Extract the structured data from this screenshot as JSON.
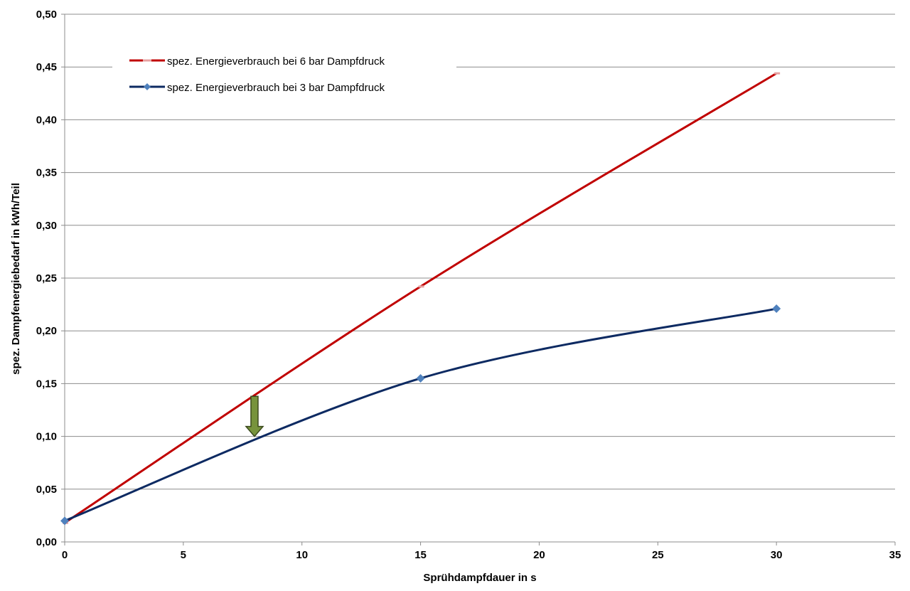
{
  "chart_data": {
    "type": "line",
    "title": "",
    "xlabel": "Sprühdampfdauer in s",
    "ylabel": "spez. Dampfenergiebedarf in kWh/Teil",
    "xlim": [
      0,
      35
    ],
    "ylim": [
      0,
      0.5
    ],
    "x_ticks": [
      "0",
      "5",
      "10",
      "15",
      "20",
      "25",
      "30",
      "35"
    ],
    "y_ticks": [
      "0,00",
      "0,05",
      "0,10",
      "0,15",
      "0,20",
      "0,25",
      "0,30",
      "0,35",
      "0,40",
      "0,45",
      "0,50"
    ],
    "grid": "horizontal",
    "legend_position": "top-left",
    "series": [
      {
        "name": "spez. Energieverbrauch bei 6 bar Dampfdruck",
        "color": "#c00000",
        "marker_color": "#e6a0a0",
        "marker": "dash",
        "x": [
          0,
          15,
          30
        ],
        "y": [
          0.018,
          0.242,
          0.444
        ]
      },
      {
        "name": "spez. Energieverbrauch bei 3 bar Dampfdruck",
        "color": "#0d2a62",
        "marker_color": "#4f81bd",
        "marker": "diamond",
        "x": [
          0,
          15,
          30
        ],
        "y": [
          0.02,
          0.155,
          0.221
        ]
      }
    ],
    "annotation": {
      "type": "arrow-down",
      "x": 8,
      "y_from": 0.138,
      "y_to": 0.1,
      "fill": "#77933c",
      "stroke": "#3b4a1e"
    }
  }
}
